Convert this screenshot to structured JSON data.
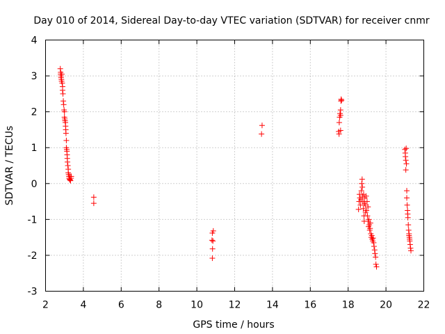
{
  "chart_data": {
    "type": "scatter",
    "title": "Day 010 of 2014, Sidereal Day-to-day VTEC variation (SDTVAR) for receiver cnmr",
    "xlabel": "GPS time / hours",
    "ylabel": "SDTVAR / TECUs",
    "xlim": [
      2,
      22
    ],
    "ylim": [
      -3,
      4
    ],
    "xticks": [
      "2",
      "4",
      "6",
      "8",
      "10",
      "12",
      "14",
      "16",
      "18",
      "20",
      "22"
    ],
    "yticks": [
      "4",
      "3",
      "2",
      "1",
      "0",
      "-1",
      "-2",
      "-3"
    ],
    "grid": true,
    "marker": "+",
    "color": "#ff0000",
    "series": [
      {
        "name": "SDTVAR",
        "points": [
          [
            2.78,
            3.2
          ],
          [
            2.8,
            3.1
          ],
          [
            2.8,
            3.05
          ],
          [
            2.82,
            3.0
          ],
          [
            2.82,
            2.95
          ],
          [
            2.84,
            2.9
          ],
          [
            2.85,
            2.85
          ],
          [
            2.86,
            3.05
          ],
          [
            2.88,
            2.8
          ],
          [
            2.9,
            2.7
          ],
          [
            2.9,
            2.6
          ],
          [
            2.92,
            2.5
          ],
          [
            2.94,
            2.3
          ],
          [
            2.96,
            2.2
          ],
          [
            2.98,
            2.05
          ],
          [
            3.0,
            2.0
          ],
          [
            3.0,
            1.85
          ],
          [
            3.02,
            1.8
          ],
          [
            3.03,
            1.75
          ],
          [
            3.05,
            1.7
          ],
          [
            3.06,
            1.6
          ],
          [
            3.07,
            1.5
          ],
          [
            3.08,
            1.4
          ],
          [
            3.1,
            1.2
          ],
          [
            3.1,
            1.0
          ],
          [
            3.12,
            0.95
          ],
          [
            3.13,
            0.9
          ],
          [
            3.14,
            0.8
          ],
          [
            3.15,
            0.7
          ],
          [
            3.16,
            0.6
          ],
          [
            3.18,
            0.5
          ],
          [
            3.2,
            0.4
          ],
          [
            3.2,
            0.3
          ],
          [
            3.22,
            0.25
          ],
          [
            3.24,
            0.2
          ],
          [
            3.25,
            0.15
          ],
          [
            3.27,
            0.12
          ],
          [
            3.3,
            0.2
          ],
          [
            3.3,
            0.1
          ],
          [
            3.32,
            0.08
          ],
          [
            3.35,
            0.15
          ],
          [
            3.36,
            0.2
          ],
          [
            4.55,
            -0.38
          ],
          [
            4.55,
            -0.55
          ],
          [
            10.8,
            -1.58
          ],
          [
            10.82,
            -1.38
          ],
          [
            10.85,
            -1.6
          ],
          [
            10.83,
            -1.82
          ],
          [
            10.82,
            -2.08
          ],
          [
            10.87,
            -1.32
          ],
          [
            13.42,
            1.38
          ],
          [
            13.45,
            1.62
          ],
          [
            17.5,
            1.45
          ],
          [
            17.52,
            1.38
          ],
          [
            17.53,
            1.7
          ],
          [
            17.55,
            1.85
          ],
          [
            17.57,
            1.95
          ],
          [
            17.6,
            2.05
          ],
          [
            17.6,
            1.9
          ],
          [
            17.62,
            2.3
          ],
          [
            17.63,
            2.35
          ],
          [
            17.65,
            2.32
          ],
          [
            17.6,
            1.48
          ],
          [
            18.55,
            -0.72
          ],
          [
            18.58,
            -0.5
          ],
          [
            18.6,
            -0.3
          ],
          [
            18.62,
            -0.4
          ],
          [
            18.65,
            -0.6
          ],
          [
            18.68,
            -0.45
          ],
          [
            18.7,
            -0.2
          ],
          [
            18.72,
            0.0
          ],
          [
            18.74,
            0.12
          ],
          [
            18.75,
            -0.1
          ],
          [
            18.76,
            -0.35
          ],
          [
            18.78,
            -0.5
          ],
          [
            18.8,
            -0.7
          ],
          [
            18.82,
            -0.3
          ],
          [
            18.84,
            -0.9
          ],
          [
            18.85,
            -1.05
          ],
          [
            18.86,
            -0.55
          ],
          [
            18.88,
            -0.4
          ],
          [
            18.9,
            -0.6
          ],
          [
            18.92,
            -0.8
          ],
          [
            18.95,
            -0.35
          ],
          [
            18.97,
            -0.75
          ],
          [
            19.0,
            -0.5
          ],
          [
            19.02,
            -0.9
          ],
          [
            19.05,
            -0.65
          ],
          [
            19.05,
            -1.05
          ],
          [
            19.08,
            -1.2
          ],
          [
            19.1,
            -1.0
          ],
          [
            19.12,
            -1.15
          ],
          [
            19.14,
            -1.3
          ],
          [
            19.16,
            -1.25
          ],
          [
            19.18,
            -1.1
          ],
          [
            19.2,
            -1.4
          ],
          [
            19.22,
            -1.5
          ],
          [
            19.25,
            -1.45
          ],
          [
            19.27,
            -1.55
          ],
          [
            19.3,
            -1.6
          ],
          [
            19.32,
            -1.52
          ],
          [
            19.35,
            -1.65
          ],
          [
            19.37,
            -1.75
          ],
          [
            19.4,
            -1.85
          ],
          [
            19.42,
            -1.95
          ],
          [
            19.45,
            -2.05
          ],
          [
            19.47,
            -2.25
          ],
          [
            19.5,
            -2.32
          ],
          [
            21.0,
            0.95
          ],
          [
            21.02,
            0.85
          ],
          [
            21.03,
            0.75
          ],
          [
            21.05,
            0.65
          ],
          [
            21.05,
            0.38
          ],
          [
            21.07,
            0.98
          ],
          [
            21.08,
            0.55
          ],
          [
            21.1,
            -0.2
          ],
          [
            21.1,
            -0.4
          ],
          [
            21.12,
            -0.6
          ],
          [
            21.14,
            -0.75
          ],
          [
            21.15,
            -0.85
          ],
          [
            21.16,
            -0.95
          ],
          [
            21.18,
            -1.15
          ],
          [
            21.2,
            -1.3
          ],
          [
            21.22,
            -1.4
          ],
          [
            21.24,
            -1.5
          ],
          [
            21.26,
            -1.6
          ],
          [
            21.28,
            -1.7
          ],
          [
            21.3,
            -1.8
          ],
          [
            21.32,
            -1.87
          ],
          [
            21.22,
            -1.45
          ],
          [
            21.25,
            -1.55
          ]
        ]
      }
    ]
  }
}
